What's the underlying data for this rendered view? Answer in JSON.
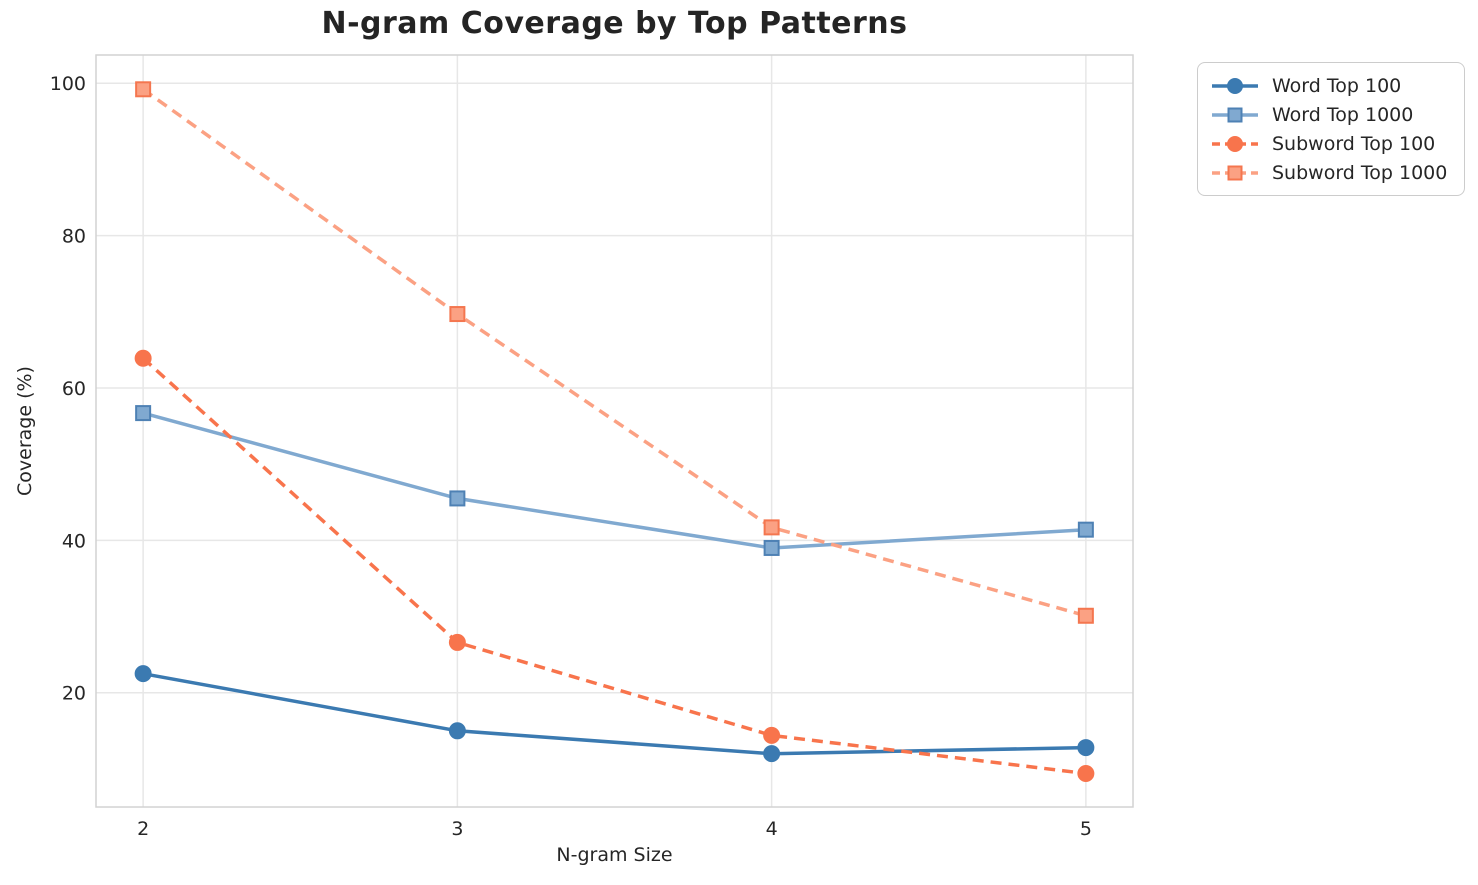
{
  "chart_data": {
    "type": "line",
    "title": "N-gram Coverage by Top Patterns",
    "xlabel": "N-gram Size",
    "ylabel": "Coverage (%)",
    "x": [
      2,
      3,
      4,
      5
    ],
    "xticks": [
      2,
      3,
      4,
      5
    ],
    "yticks": [
      20,
      40,
      60,
      80,
      100
    ],
    "xlim": [
      1.85,
      5.15
    ],
    "ylim": [
      5,
      103.7
    ],
    "grid": true,
    "legend_position": "outside upper right",
    "series": [
      {
        "name": "Word Top 100",
        "values": [
          22.5,
          15.0,
          12.0,
          12.8
        ],
        "color": "#3B7AB1",
        "marker": "circle",
        "marker_edge": "#3B7AB1",
        "line_style": "solid"
      },
      {
        "name": "Word Top 1000",
        "values": [
          56.7,
          45.5,
          39.0,
          41.4
        ],
        "color": "#80A9D0",
        "marker": "square",
        "marker_edge": "#4E81B4",
        "line_style": "solid"
      },
      {
        "name": "Subword Top 100",
        "values": [
          63.9,
          26.6,
          14.4,
          9.4
        ],
        "color": "#F8744C",
        "marker": "circle",
        "marker_edge": "#F8744C",
        "line_style": "dashed"
      },
      {
        "name": "Subword Top 1000",
        "values": [
          99.2,
          69.7,
          41.7,
          30.1
        ],
        "color": "#FBA183",
        "marker": "square",
        "marker_edge": "#F4764F",
        "line_style": "dashed"
      }
    ],
    "style": {
      "grid_color": "#E7E7E7",
      "spine_color": "#D2D2D2",
      "text_color": "#262626"
    }
  }
}
